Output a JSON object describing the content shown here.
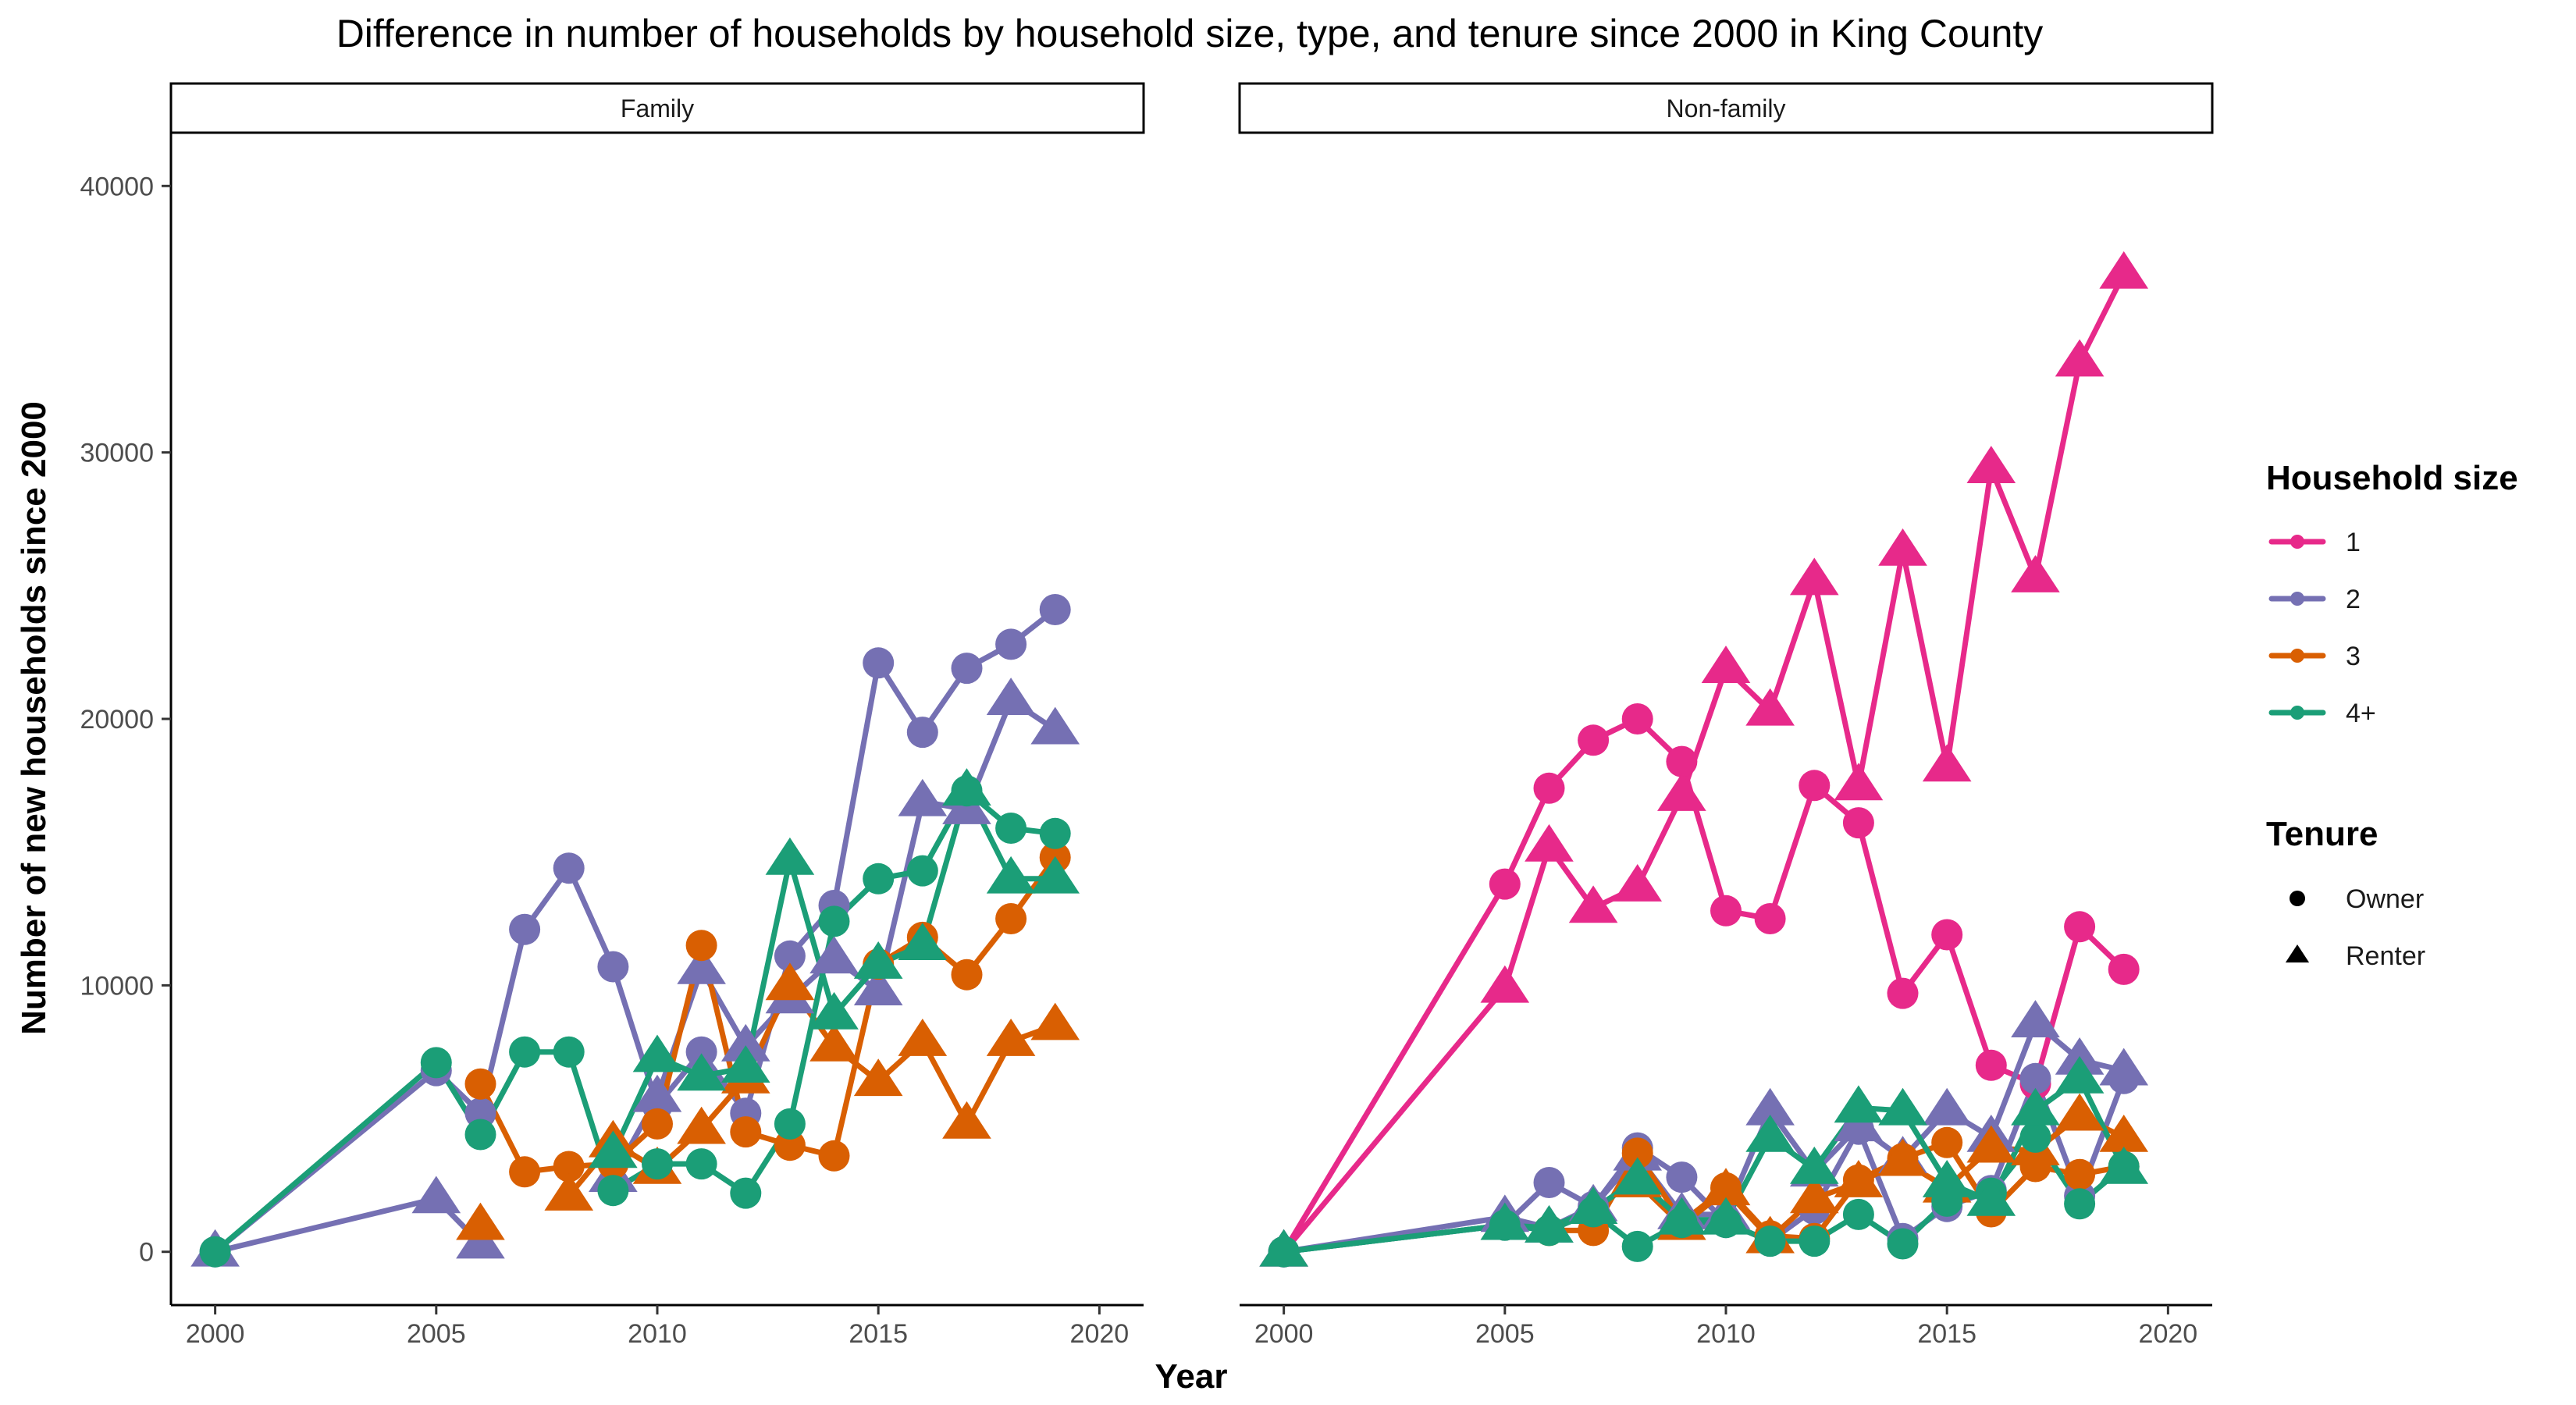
{
  "chart_data": {
    "type": "line",
    "title": "Difference in number of households by household size, type, and tenure since 2000 in King County",
    "xlabel": "Year",
    "ylabel": "Number of new households since 2000",
    "xlim": [
      1999,
      2021
    ],
    "ylim": [
      -2000,
      42000
    ],
    "x_ticks": [
      2000,
      2005,
      2010,
      2015,
      2020
    ],
    "y_ticks": [
      0,
      10000,
      20000,
      30000,
      40000
    ],
    "grid": false,
    "legend_position": "right",
    "legends": {
      "color": {
        "title": "Household size",
        "items": [
          {
            "label": "1",
            "color": "#e7298a"
          },
          {
            "label": "2",
            "color": "#7570b3"
          },
          {
            "label": "3",
            "color": "#d95f02"
          },
          {
            "label": "4+",
            "color": "#1b9e77"
          }
        ]
      },
      "shape": {
        "title": "Tenure",
        "items": [
          {
            "label": "Owner",
            "shape": "circle"
          },
          {
            "label": "Renter",
            "shape": "triangle"
          }
        ]
      }
    },
    "panels": [
      {
        "label": "Family",
        "series": [
          {
            "size": "2",
            "tenure": "Owner",
            "x": [
              2000,
              2005,
              2006,
              2007,
              2008,
              2009,
              2010,
              2011,
              2012,
              2013,
              2014,
              2015,
              2016,
              2017,
              2018,
              2019
            ],
            "y": [
              0,
              6800,
              5200,
              12100,
              14400,
              10700,
              5500,
              7500,
              5200,
              11100,
              13000,
              22100,
              19500,
              21900,
              22800,
              24100
            ]
          },
          {
            "size": "2",
            "tenure": "Renter",
            "x": [
              2000,
              2005,
              2006
            ],
            "y": [
              0,
              2000,
              300
            ]
          },
          {
            "size": "2",
            "tenure": "Renter",
            "x": [
              2009,
              2010,
              2011,
              2012,
              2013,
              2014,
              2015,
              2016,
              2017,
              2018,
              2019
            ],
            "y": [
              2800,
              5800,
              10600,
              7700,
              9500,
              11000,
              9800,
              16900,
              16600,
              20700,
              19600
            ]
          },
          {
            "size": "3",
            "tenure": "Owner",
            "x": [
              2006,
              2007,
              2008,
              2009,
              2010,
              2011,
              2012,
              2013,
              2014,
              2015,
              2016,
              2017,
              2018,
              2019
            ],
            "y": [
              6300,
              3000,
              3200,
              3300,
              4800,
              11500,
              4500,
              4000,
              3600,
              10800,
              11800,
              10400,
              12500,
              14800
            ]
          },
          {
            "size": "3",
            "tenure": "Renter",
            "x": [
              2006
            ],
            "y": [
              1000
            ]
          },
          {
            "size": "3",
            "tenure": "Renter",
            "x": [
              2008,
              2009,
              2010,
              2011,
              2012,
              2013,
              2014,
              2015,
              2016,
              2017,
              2018,
              2019
            ],
            "y": [
              2100,
              4100,
              3100,
              4600,
              6500,
              10000,
              7700,
              6400,
              7900,
              4800,
              7900,
              8500
            ]
          },
          {
            "size": "4+",
            "tenure": "Owner",
            "x": [
              2000,
              2005,
              2006,
              2007,
              2008,
              2009,
              2010,
              2011,
              2012,
              2013,
              2014,
              2015,
              2016,
              2017,
              2018,
              2019
            ],
            "y": [
              0,
              7100,
              4400,
              7500,
              7500,
              2300,
              3300,
              3300,
              2200,
              4800,
              12400,
              14000,
              14300,
              17300,
              15900,
              15700
            ]
          },
          {
            "size": "4+",
            "tenure": "Renter",
            "x": [
              2009,
              2010,
              2011,
              2012,
              2013,
              2014,
              2015,
              2016,
              2017,
              2018,
              2019
            ],
            "y": [
              3700,
              7300,
              6600,
              6900,
              14700,
              8900,
              10800,
              11500,
              17300,
              14000,
              14000
            ]
          }
        ]
      },
      {
        "label": "Non-family",
        "series": [
          {
            "size": "1",
            "tenure": "Owner",
            "x": [
              2000,
              2005,
              2006,
              2007,
              2008,
              2009,
              2010,
              2011,
              2012,
              2013,
              2014,
              2015,
              2016,
              2017,
              2018,
              2019
            ],
            "y": [
              0,
              13800,
              17400,
              19200,
              20000,
              18400,
              12800,
              12500,
              17500,
              16100,
              9700,
              11900,
              7000,
              6300,
              12200,
              10600
            ]
          },
          {
            "size": "1",
            "tenure": "Renter",
            "x": [
              2000,
              2005,
              2006,
              2007,
              2008,
              2009,
              2010,
              2011,
              2012,
              2013,
              2014,
              2015,
              2016,
              2017,
              2018,
              2019
            ],
            "y": [
              0,
              9900,
              15200,
              12900,
              13700,
              17100,
              21900,
              20300,
              25200,
              17500,
              26300,
              18200,
              29400,
              25300,
              33400,
              36700
            ]
          },
          {
            "size": "2",
            "tenure": "Owner",
            "x": [
              2000,
              2005,
              2006,
              2007,
              2008,
              2009,
              2010,
              2011,
              2012,
              2013,
              2014,
              2015,
              2016,
              2017,
              2018,
              2019
            ],
            "y": [
              0,
              1000,
              2600,
              1700,
              3900,
              2800,
              1100,
              400,
              1600,
              4600,
              500,
              1700,
              2300,
              6500,
              2100,
              6500
            ]
          },
          {
            "size": "2",
            "tenure": "Renter",
            "x": [
              2000,
              2005,
              2006,
              2007,
              2008,
              2009,
              2010,
              2011,
              2012,
              2013,
              2014,
              2015,
              2016,
              2017,
              2018,
              2019
            ],
            "y": [
              0,
              1300,
              900,
              1700,
              3600,
              1400,
              1400,
              5300,
              3000,
              4700,
              3500,
              5300,
              4300,
              8600,
              7200,
              6800
            ]
          },
          {
            "size": "3",
            "tenure": "Owner",
            "x": [
              2006,
              2007,
              2008,
              2009,
              2010,
              2011,
              2012,
              2013,
              2014,
              2015,
              2016,
              2017,
              2018,
              2019
            ],
            "y": [
              800,
              800,
              3700,
              1100,
              2400,
              600,
              500,
              2700,
              3500,
              4100,
              1500,
              3200,
              2900,
              3200
            ]
          },
          {
            "size": "3",
            "tenure": "Renter",
            "x": [
              2008,
              2009,
              2010,
              2011,
              2012,
              2013,
              2014,
              2015,
              2016,
              2017,
              2018,
              2019
            ],
            "y": [
              2600,
              1000,
              2300,
              500,
              2000,
              2600,
              3400,
              2400,
              3900,
              3800,
              5100,
              4300
            ]
          },
          {
            "size": "4+",
            "tenure": "Owner",
            "x": [
              2000,
              2005,
              2006,
              2007,
              2008,
              2009,
              2010,
              2011,
              2012,
              2013,
              2014,
              2015,
              2016,
              2017,
              2018,
              2019
            ],
            "y": [
              0,
              1000,
              800,
              1500,
              200,
              1100,
              1100,
              400,
              400,
              1400,
              300,
              1900,
              2200,
              4300,
              1800,
              3200
            ]
          },
          {
            "size": "4+",
            "tenure": "Renter",
            "x": [
              2000,
              2005,
              2006,
              2007,
              2008,
              2009,
              2010,
              2011,
              2012,
              2013,
              2014,
              2015,
              2016,
              2017,
              2018,
              2019
            ],
            "y": [
              0,
              1000,
              900,
              1600,
              2700,
              1200,
              1200,
              4300,
              3100,
              5400,
              5300,
              2600,
              1900,
              5300,
              6500,
              3100
            ]
          }
        ]
      }
    ]
  }
}
